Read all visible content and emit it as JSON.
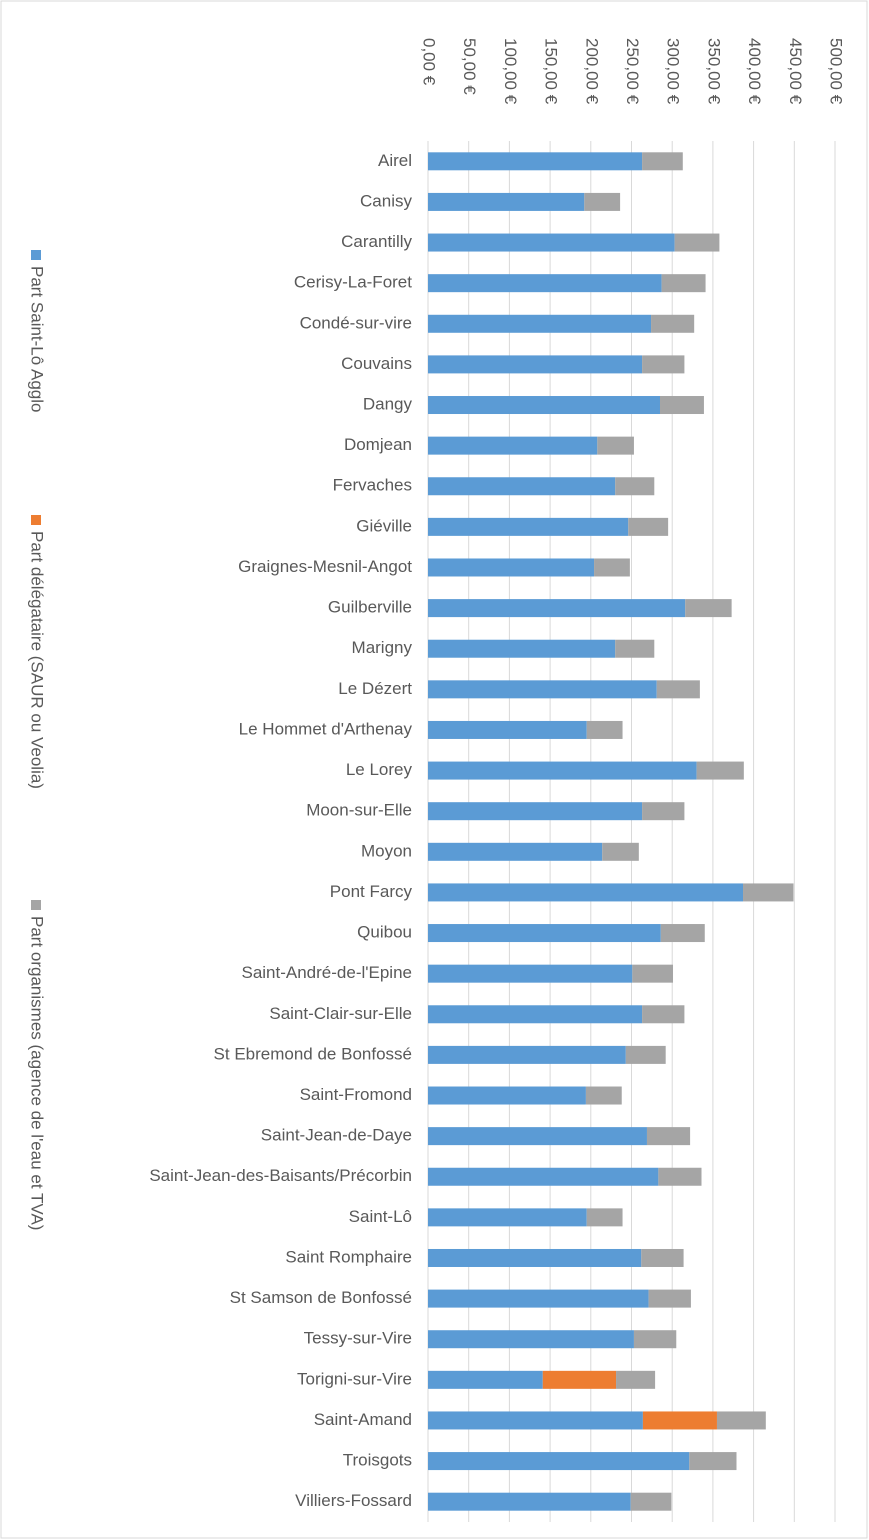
{
  "chart_data": {
    "type": "stacked-bar-horizontal",
    "categories": [
      "Airel",
      "Canisy",
      "Carantilly",
      "Cerisy-La-Foret",
      "Condé-sur-vire",
      "Couvains",
      "Dangy",
      "Domjean",
      "Fervaches",
      "Giéville",
      "Graignes-Mesnil-Angot",
      "Guilberville",
      "Marigny",
      "Le Dézert",
      "Le Hommet d'Arthenay",
      "Le Lorey",
      "Moon-sur-Elle",
      "Moyon",
      "Pont Farcy",
      "Quibou",
      "Saint-André-de-l'Epine",
      "Saint-Clair-sur-Elle",
      "St Ebremond de Bonfossé",
      "Saint-Fromond",
      "Saint-Jean-de-Daye",
      "Saint-Jean-des-Baisants/Précorbin",
      "Saint-Lô",
      "Saint Romphaire",
      "St Samson de Bonfossé",
      "Tessy-sur-Vire",
      "Torigni-sur-Vire",
      "Saint-Amand",
      "Troisgots",
      "Villiers-Fossard"
    ],
    "series": [
      {
        "name": "Part Saint-Lô Agglo",
        "color": "#5b9bd5",
        "values": [
          263,
          192,
          303,
          287,
          274,
          263,
          285,
          208,
          230,
          246,
          204,
          316,
          230,
          281,
          195,
          330,
          263,
          214,
          387,
          286,
          251,
          263,
          243,
          194,
          269,
          283,
          195,
          262,
          271,
          253,
          141,
          264,
          321,
          249
        ]
      },
      {
        "name": "Part délégataire (SAUR ou Veolia)",
        "color": "#ed7d31",
        "values": [
          0,
          0,
          0,
          0,
          0,
          0,
          0,
          0,
          0,
          0,
          0,
          0,
          0,
          0,
          0,
          0,
          0,
          0,
          0,
          0,
          0,
          0,
          0,
          0,
          0,
          0,
          0,
          0,
          0,
          0,
          90,
          91,
          0,
          0
        ]
      },
      {
        "name": "Part organismes (agence de l'eau et TVA)",
        "color": "#a5a5a5",
        "values": [
          50,
          44,
          55,
          54,
          53,
          52,
          54,
          45,
          48,
          49,
          44,
          57,
          48,
          53,
          44,
          58,
          52,
          45,
          62,
          54,
          50,
          52,
          49,
          44,
          53,
          53,
          44,
          52,
          52,
          52,
          48,
          60,
          58,
          50
        ]
      }
    ],
    "xlim": [
      0,
      500
    ],
    "xticks": [
      {
        "value": 0,
        "label": "0,00 €"
      },
      {
        "value": 50,
        "label": "50,00 €"
      },
      {
        "value": 100,
        "label": "100,00 €"
      },
      {
        "value": 150,
        "label": "150,00 €"
      },
      {
        "value": 200,
        "label": "200,00 €"
      },
      {
        "value": 250,
        "label": "250,00 €"
      },
      {
        "value": 300,
        "label": "300,00 €"
      },
      {
        "value": 350,
        "label": "350,00 €"
      },
      {
        "value": 400,
        "label": "400,00 €"
      },
      {
        "value": 450,
        "label": "450,00 €"
      },
      {
        "value": 500,
        "label": "500,00 €"
      }
    ],
    "grid": true,
    "legend": "left"
  }
}
